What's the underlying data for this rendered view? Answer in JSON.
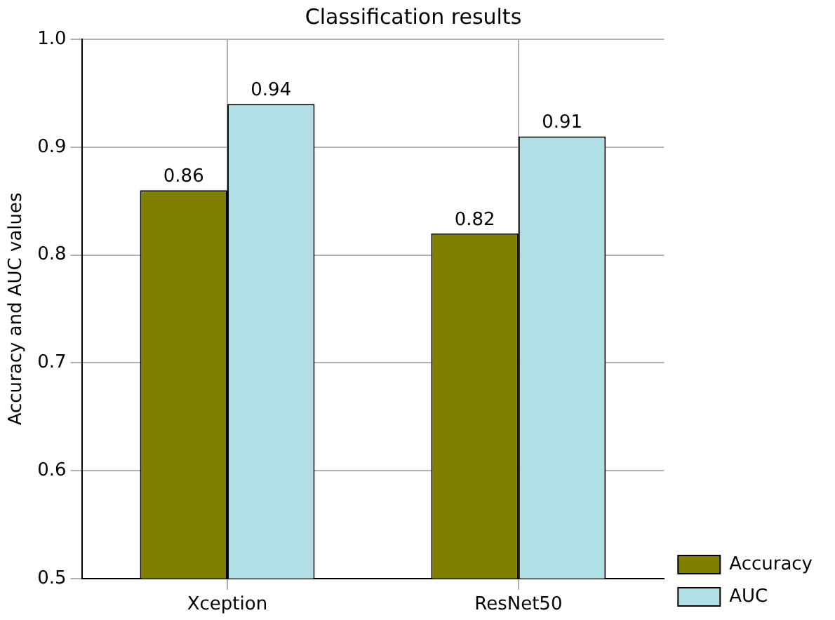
{
  "chart_data": {
    "type": "bar",
    "title": "Classification results",
    "ylabel": "Accuracy and AUC values",
    "categories": [
      "Xception",
      "ResNet50"
    ],
    "series": [
      {
        "name": "Accuracy",
        "color": "#808000",
        "values": [
          0.86,
          0.82
        ]
      },
      {
        "name": "AUC",
        "color": "#b0e0e6",
        "values": [
          0.94,
          0.91
        ]
      }
    ],
    "ylim": [
      0.5,
      1.0
    ],
    "yticks": [
      {
        "value": 0.5,
        "label": "0.5"
      },
      {
        "value": 0.6,
        "label": "0.6"
      },
      {
        "value": 0.7,
        "label": "0.7"
      },
      {
        "value": 0.8,
        "label": "0.8"
      },
      {
        "value": 0.9,
        "label": "0.9"
      },
      {
        "value": 1.0,
        "label": "1.0"
      }
    ],
    "grid": true,
    "legend": "bottom right",
    "data_labels": true
  }
}
